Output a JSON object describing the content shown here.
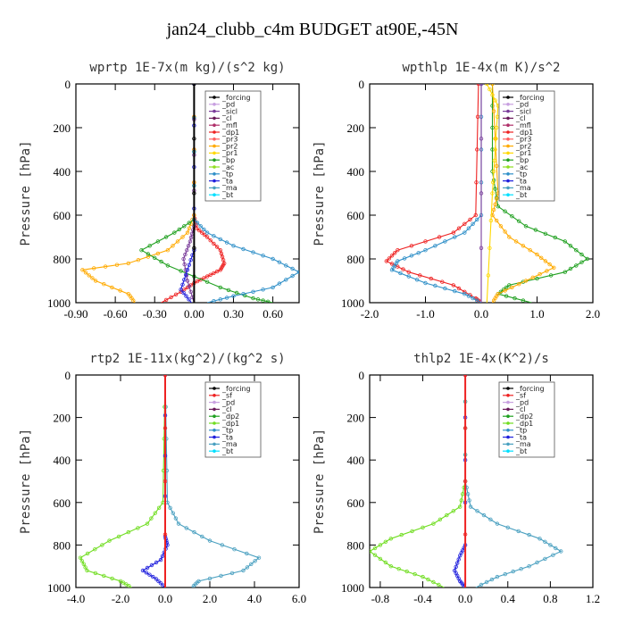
{
  "suptitle": "jan24_clubb_c4m  BUDGET at90E,-45N",
  "colors": {
    "forcing": "#000000",
    "pd": "#c8a0e0",
    "sicl": "#7a3c9a",
    "cl": "#6a1a5a",
    "mfl": "#b0306a",
    "dp1": "#ee2222",
    "pr3": "#ff6060",
    "pr2": "#ffaa00",
    "pr1": "#ffd800",
    "bp": "#20a020",
    "ac": "#90e020",
    "tp": "#3090c8",
    "ta": "#2020dd",
    "ma": "#4aa0c0",
    "bt": "#00e0ff",
    "sf": "#ee2222",
    "dp2": "#20a020",
    "dp1_lime": "#70dd20"
  },
  "chart_data": [
    {
      "type": "line",
      "title": "wprtp   1E-7x(m kg)/(s^2 kg)",
      "ylabel": "Pressure [hPa]",
      "ylim": [
        1000,
        0
      ],
      "xlim": [
        -0.9,
        0.8
      ],
      "xticks": [
        "-0.90",
        "-0.60",
        "-0.30",
        "0.00",
        "0.30",
        "0.60"
      ],
      "xtick_values": [
        -0.9,
        -0.6,
        -0.3,
        0.0,
        0.3,
        0.6
      ],
      "yticks": [
        "0",
        "200",
        "400",
        "600",
        "800",
        "1000"
      ],
      "legend": [
        "_forcing",
        "_pd",
        "_sicl",
        "_cl",
        "_mfl",
        "_dp1",
        "_pr3",
        "_pr2",
        "_pr1",
        "_bp",
        "_ac",
        "_tp",
        "_ta",
        "_ma",
        "_bt"
      ],
      "legend_keys": [
        "forcing",
        "pd",
        "sicl",
        "cl",
        "mfl",
        "dp1",
        "pr3",
        "pr2",
        "pr1",
        "bp",
        "ac",
        "tp",
        "ta",
        "ma",
        "bt"
      ],
      "series": [
        {
          "key": "dp1",
          "points": [
            [
              0,
              0
            ],
            [
              0,
              600
            ],
            [
              0.02,
              660
            ],
            [
              0.1,
              700
            ],
            [
              0.2,
              760
            ],
            [
              0.23,
              820
            ],
            [
              0.2,
              850
            ],
            [
              0.1,
              880
            ],
            [
              0.0,
              910
            ],
            [
              -0.1,
              950
            ],
            [
              -0.25,
              1000
            ]
          ]
        },
        {
          "key": "pr2",
          "points": [
            [
              0,
              0
            ],
            [
              0,
              600
            ],
            [
              -0.05,
              680
            ],
            [
              -0.2,
              760
            ],
            [
              -0.5,
              820
            ],
            [
              -0.85,
              850
            ],
            [
              -0.75,
              900
            ],
            [
              -0.5,
              960
            ],
            [
              -0.45,
              1000
            ]
          ]
        },
        {
          "key": "bp",
          "points": [
            [
              0,
              0
            ],
            [
              0,
              620
            ],
            [
              -0.15,
              680
            ],
            [
              -0.4,
              760
            ],
            [
              -0.2,
              830
            ],
            [
              0.2,
              930
            ],
            [
              0.45,
              980
            ],
            [
              0.6,
              1000
            ]
          ]
        },
        {
          "key": "tp",
          "points": [
            [
              0,
              0
            ],
            [
              0,
              620
            ],
            [
              0.1,
              680
            ],
            [
              0.3,
              740
            ],
            [
              0.6,
              800
            ],
            [
              0.8,
              860
            ],
            [
              0.6,
              930
            ],
            [
              0.3,
              970
            ],
            [
              0.1,
              1000
            ]
          ]
        },
        {
          "key": "sicl",
          "points": [
            [
              0,
              0
            ],
            [
              0,
              650
            ],
            [
              -0.03,
              720
            ],
            [
              -0.08,
              800
            ],
            [
              -0.05,
              900
            ],
            [
              0,
              1000
            ]
          ]
        },
        {
          "key": "ta",
          "points": [
            [
              0,
              0
            ],
            [
              0,
              760
            ],
            [
              -0.05,
              850
            ],
            [
              -0.1,
              940
            ],
            [
              -0.02,
              1000
            ]
          ]
        },
        {
          "key": "forcing",
          "points": [
            [
              0,
              0
            ],
            [
              0,
              1000
            ]
          ]
        }
      ]
    },
    {
      "type": "line",
      "title": "wpthlp   1E-4x(m K)/s^2",
      "ylabel": "Pressure [hPa]",
      "ylim": [
        1000,
        0
      ],
      "xlim": [
        -2.0,
        2.0
      ],
      "xticks": [
        "-2.0",
        "-1.0",
        "0.0",
        "1.0",
        "2.0"
      ],
      "xtick_values": [
        -2.0,
        -1.0,
        0.0,
        1.0,
        2.0
      ],
      "yticks": [
        "0",
        "200",
        "400",
        "600",
        "800",
        "1000"
      ],
      "legend": [
        "_forcing",
        "_pd",
        "_sicl",
        "_cl",
        "_mfl",
        "_dp1",
        "_pr3",
        "_pr2",
        "_pr1",
        "_bp",
        "_ac",
        "_tp",
        "_ta",
        "_ma",
        "_bt"
      ],
      "legend_keys": [
        "forcing",
        "pd",
        "sicl",
        "cl",
        "mfl",
        "dp1",
        "pr3",
        "pr2",
        "pr1",
        "bp",
        "ac",
        "tp",
        "ta",
        "ma",
        "bt"
      ],
      "series": [
        {
          "key": "dp1",
          "points": [
            [
              -0.05,
              0
            ],
            [
              -0.1,
              600
            ],
            [
              -0.5,
              680
            ],
            [
              -1.5,
              760
            ],
            [
              -1.7,
              810
            ],
            [
              -1.3,
              860
            ],
            [
              -0.5,
              920
            ],
            [
              -0.1,
              980
            ],
            [
              0,
              1000
            ]
          ]
        },
        {
          "key": "tp",
          "points": [
            [
              0,
              0
            ],
            [
              0,
              600
            ],
            [
              -0.3,
              680
            ],
            [
              -1.0,
              760
            ],
            [
              -1.5,
              810
            ],
            [
              -1.6,
              850
            ],
            [
              -1.0,
              910
            ],
            [
              -0.3,
              960
            ],
            [
              0,
              1000
            ]
          ]
        },
        {
          "key": "bp",
          "points": [
            [
              0.2,
              0
            ],
            [
              0.2,
              400
            ],
            [
              0.3,
              560
            ],
            [
              0.8,
              650
            ],
            [
              1.5,
              720
            ],
            [
              1.9,
              800
            ],
            [
              1.5,
              860
            ],
            [
              0.5,
              920
            ],
            [
              0.3,
              960
            ],
            [
              0.9,
              1000
            ]
          ]
        },
        {
          "key": "pr2",
          "points": [
            [
              0.2,
              0
            ],
            [
              0.3,
              500
            ],
            [
              0.2,
              600
            ],
            [
              0.5,
              700
            ],
            [
              1.0,
              780
            ],
            [
              1.3,
              840
            ],
            [
              0.8,
              900
            ],
            [
              0.3,
              960
            ],
            [
              0.2,
              1000
            ]
          ]
        },
        {
          "key": "pr1",
          "points": [
            [
              0.1,
              0
            ],
            [
              0.3,
              100
            ],
            [
              0.25,
              300
            ],
            [
              0.2,
              500
            ],
            [
              0.1,
              1000
            ]
          ]
        },
        {
          "key": "sicl",
          "points": [
            [
              0,
              0
            ],
            [
              0,
              1000
            ]
          ]
        }
      ]
    },
    {
      "type": "line",
      "title": "rtp2   1E-11x(kg^2)/(kg^2 s)",
      "ylabel": "Pressure [hPa]",
      "ylim": [
        1000,
        0
      ],
      "xlim": [
        -4.0,
        6.0
      ],
      "xticks": [
        "-4.0",
        "-2.0",
        "0.0",
        "2.0",
        "4.0",
        "6.0"
      ],
      "xtick_values": [
        -4.0,
        -2.0,
        0.0,
        2.0,
        4.0,
        6.0
      ],
      "yticks": [
        "0",
        "200",
        "400",
        "600",
        "800",
        "1000"
      ],
      "legend": [
        "_forcing",
        "_sf",
        "_pd",
        "_cl",
        "_dp2",
        "_dp1",
        "_tp",
        "_ta",
        "_ma",
        "_bt"
      ],
      "legend_keys": [
        "forcing",
        "sf",
        "pd",
        "cl",
        "dp2",
        "dp1_lime",
        "tp",
        "ta",
        "ma",
        "bt"
      ],
      "series": [
        {
          "key": "dp1_lime",
          "points": [
            [
              0,
              0
            ],
            [
              -0.1,
              600
            ],
            [
              -0.8,
              700
            ],
            [
              -2.5,
              780
            ],
            [
              -3.8,
              860
            ],
            [
              -3.5,
              920
            ],
            [
              -2.0,
              970
            ],
            [
              -1.5,
              1000
            ]
          ]
        },
        {
          "key": "ma",
          "points": [
            [
              0,
              0
            ],
            [
              0.1,
              600
            ],
            [
              0.6,
              700
            ],
            [
              2.0,
              780
            ],
            [
              4.2,
              860
            ],
            [
              3.5,
              920
            ],
            [
              1.5,
              970
            ],
            [
              1.2,
              1000
            ]
          ]
        },
        {
          "key": "ta",
          "points": [
            [
              0,
              0
            ],
            [
              0,
              760
            ],
            [
              0.1,
              800
            ],
            [
              -0.2,
              870
            ],
            [
              -1.0,
              920
            ],
            [
              -0.4,
              960
            ],
            [
              0,
              1000
            ]
          ]
        },
        {
          "key": "sf",
          "points": [
            [
              0,
              0
            ],
            [
              0,
              1000
            ]
          ]
        }
      ]
    },
    {
      "type": "line",
      "title": "thlp2   1E-4x(K^2)/s",
      "ylabel": "Pressure [hPa]",
      "ylim": [
        1000,
        0
      ],
      "xlim": [
        -0.9,
        1.2
      ],
      "xticks": [
        "-0.8",
        "-0.4",
        "0.0",
        "0.4",
        "0.8",
        "1.2"
      ],
      "xtick_values": [
        -0.8,
        -0.4,
        0.0,
        0.4,
        0.8,
        1.2
      ],
      "yticks": [
        "0",
        "200",
        "400",
        "600",
        "800",
        "1000"
      ],
      "legend": [
        "_forcing",
        "_sf",
        "_pd",
        "_cl",
        "_dp2",
        "_dp1",
        "_tp",
        "_ta",
        "_ma",
        "_bt"
      ],
      "legend_keys": [
        "forcing",
        "sf",
        "pd",
        "cl",
        "dp2",
        "dp1_lime",
        "tp",
        "ta",
        "ma",
        "bt"
      ],
      "series": [
        {
          "key": "dp1_lime",
          "points": [
            [
              0,
              0
            ],
            [
              0,
              500
            ],
            [
              -0.05,
              620
            ],
            [
              -0.3,
              700
            ],
            [
              -0.7,
              770
            ],
            [
              -0.9,
              830
            ],
            [
              -0.7,
              900
            ],
            [
              -0.4,
              950
            ],
            [
              -0.2,
              1000
            ]
          ]
        },
        {
          "key": "ma",
          "points": [
            [
              0,
              0
            ],
            [
              0,
              500
            ],
            [
              0.05,
              620
            ],
            [
              0.3,
              700
            ],
            [
              0.7,
              770
            ],
            [
              0.9,
              830
            ],
            [
              0.6,
              900
            ],
            [
              0.3,
              950
            ],
            [
              0.1,
              1000
            ]
          ]
        },
        {
          "key": "ta",
          "points": [
            [
              0,
              0
            ],
            [
              0,
              800
            ],
            [
              -0.05,
              850
            ],
            [
              -0.1,
              920
            ],
            [
              -0.05,
              970
            ],
            [
              0,
              1000
            ]
          ]
        },
        {
          "key": "sf",
          "points": [
            [
              0,
              0
            ],
            [
              0,
              1000
            ]
          ]
        }
      ]
    }
  ]
}
